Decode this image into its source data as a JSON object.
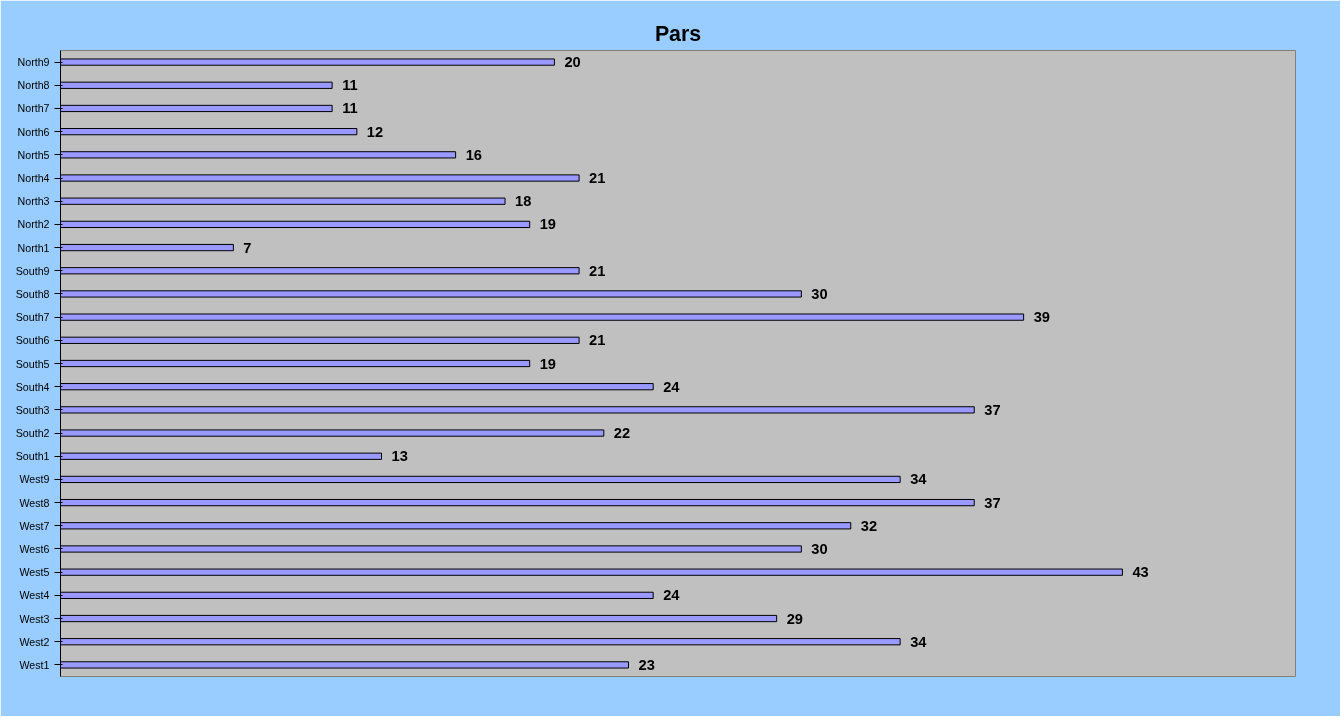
{
  "chart_data": {
    "type": "bar",
    "orientation": "horizontal",
    "title": "Pars",
    "categories": [
      "North9",
      "North8",
      "North7",
      "North6",
      "North5",
      "North4",
      "North3",
      "North2",
      "North1",
      "South9",
      "South8",
      "South7",
      "South6",
      "South5",
      "South4",
      "South3",
      "South2",
      "South1",
      "West9",
      "West8",
      "West7",
      "West6",
      "West5",
      "West4",
      "West3",
      "West2",
      "West1"
    ],
    "values": [
      20,
      11,
      11,
      12,
      16,
      21,
      18,
      19,
      7,
      21,
      30,
      39,
      21,
      19,
      24,
      37,
      22,
      13,
      34,
      37,
      32,
      30,
      43,
      24,
      29,
      34,
      23
    ],
    "color": "#9999ff",
    "data_labels": true,
    "grid": false,
    "tick_labels": "y"
  }
}
